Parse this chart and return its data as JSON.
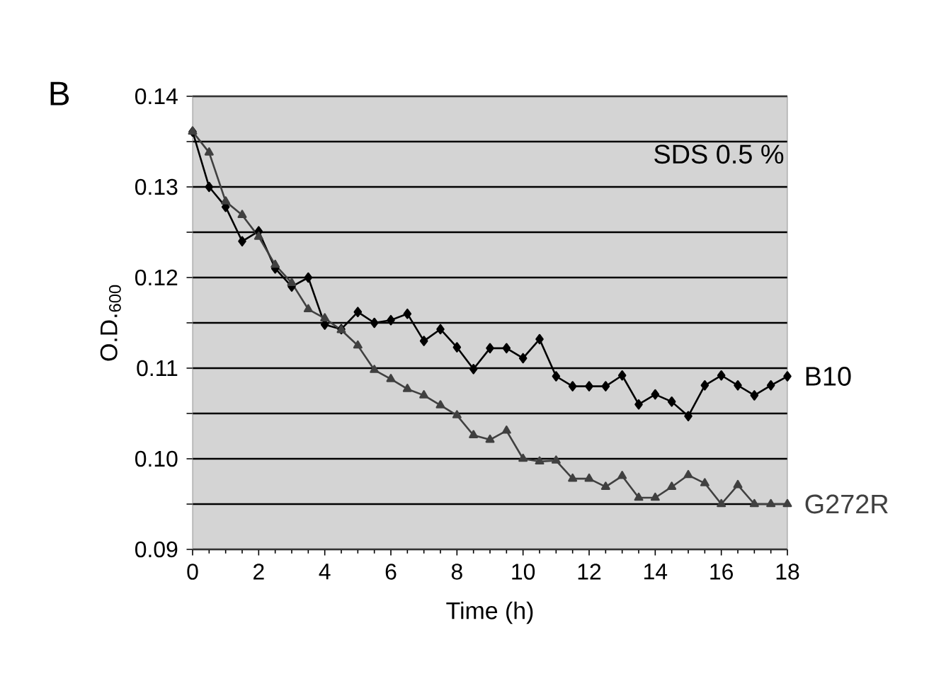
{
  "chart_data": {
    "type": "line",
    "xlabel": "Time (h)",
    "ylabel": "O.D.$_{600}$",
    "annotations": [
      "B",
      "SDS 0.5 %"
    ],
    "x": [
      0,
      0.5,
      1,
      1.5,
      2,
      2.5,
      3,
      3.5,
      4,
      4.5,
      5,
      5.5,
      6,
      6.5,
      7,
      7.5,
      8,
      8.5,
      9,
      9.5,
      10,
      10.5,
      11,
      11.5,
      12,
      12.5,
      13,
      13.5,
      14,
      14.5,
      15,
      15.5,
      16,
      16.5,
      17,
      17.5,
      18
    ],
    "series": [
      {
        "name": "B10",
        "color": "#000000",
        "marker": "diamond",
        "values": [
          0.1361,
          0.13,
          0.1278,
          0.124,
          0.1251,
          0.121,
          0.119,
          0.12,
          0.1148,
          0.1143,
          0.1162,
          0.115,
          0.1153,
          0.116,
          0.113,
          0.1143,
          0.1123,
          0.1099,
          0.1122,
          0.1122,
          0.1111,
          0.1132,
          0.1091,
          0.108,
          0.108,
          0.108,
          0.1092,
          0.106,
          0.1071,
          0.1063,
          0.1047,
          0.1081,
          0.1092,
          0.1081,
          0.107,
          0.1081,
          0.1091
        ]
      },
      {
        "name": "G272R",
        "color": "#404040",
        "marker": "triangle",
        "values": [
          0.1361,
          0.1338,
          0.1284,
          0.1269,
          0.1245,
          0.1214,
          0.1194,
          0.1165,
          0.1155,
          0.1142,
          0.1125,
          0.1098,
          0.1088,
          0.1077,
          0.107,
          0.1059,
          0.1048,
          0.1026,
          0.1021,
          0.1031,
          0.1,
          0.0997,
          0.0998,
          0.0978,
          0.0978,
          0.0969,
          0.0981,
          0.0957,
          0.0957,
          0.0969,
          0.0982,
          0.0973,
          0.095,
          0.0971,
          0.095,
          0.095,
          0.095
        ]
      }
    ],
    "xlim": [
      0,
      18
    ],
    "xticks": [
      0,
      2,
      4,
      6,
      8,
      10,
      12,
      14,
      16,
      18
    ],
    "ylim": [
      0.09,
      0.14
    ],
    "yticks": [
      {
        "value": 0.09,
        "label": "0.09"
      },
      {
        "value": 0.095,
        "label": null
      },
      {
        "value": 0.1,
        "label": "0.10"
      },
      {
        "value": 0.105,
        "label": null
      },
      {
        "value": 0.11,
        "label": "0.11"
      },
      {
        "value": 0.115,
        "label": null
      },
      {
        "value": 0.12,
        "label": "0.12"
      },
      {
        "value": 0.125,
        "label": null
      },
      {
        "value": 0.13,
        "label": "0.13"
      },
      {
        "value": 0.135,
        "label": null
      },
      {
        "value": 0.14,
        "label": "0.14"
      }
    ],
    "grid": "y",
    "line_style": "solid",
    "legend": "right"
  }
}
